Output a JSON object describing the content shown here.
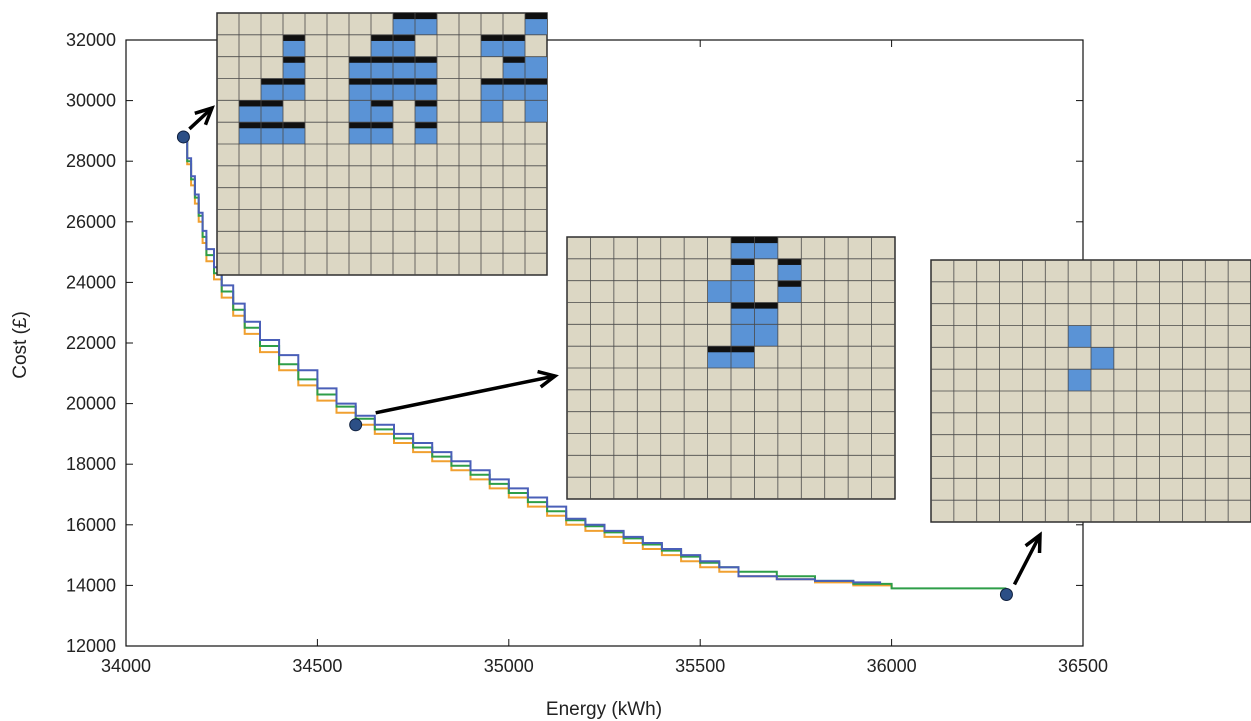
{
  "chart_data": {
    "type": "line",
    "xlabel": "Energy (kWh)",
    "ylabel": "Cost (£)",
    "xlim": [
      34000,
      36500
    ],
    "ylim": [
      12000,
      32000
    ],
    "x_ticks": [
      "34000",
      "34500",
      "35000",
      "35500",
      "36000",
      "36500"
    ],
    "y_ticks": [
      "12000",
      "14000",
      "16000",
      "18000",
      "20000",
      "22000",
      "24000",
      "26000",
      "28000",
      "30000",
      "32000"
    ],
    "grid": false,
    "series": [
      {
        "color": "#F0A030",
        "x": [
          34150,
          34160,
          34170,
          34180,
          34190,
          34200,
          34210,
          34230,
          34250,
          34280,
          34310,
          34350,
          34400,
          34450,
          34500,
          34550,
          34600,
          34650,
          34700,
          34750,
          34800,
          34850,
          34900,
          34950,
          35000,
          35050,
          35100,
          35150,
          35200,
          35250,
          35300,
          35350,
          35400,
          35450,
          35500,
          35550,
          35600,
          35700,
          35800,
          35900,
          36000
        ],
        "y": [
          28800,
          27900,
          27200,
          26600,
          26000,
          25300,
          24700,
          24100,
          23500,
          22900,
          22300,
          21700,
          21100,
          20600,
          20100,
          19700,
          19300,
          19000,
          18700,
          18400,
          18100,
          17800,
          17500,
          17200,
          16900,
          16600,
          16300,
          16000,
          15800,
          15600,
          15400,
          15200,
          15000,
          14800,
          14600,
          14450,
          14300,
          14200,
          14100,
          14000,
          13900
        ]
      },
      {
        "color": "#2E9E48",
        "x": [
          34150,
          34160,
          34170,
          34180,
          34190,
          34200,
          34210,
          34230,
          34250,
          34280,
          34310,
          34350,
          34400,
          34450,
          34500,
          34550,
          34600,
          34650,
          34700,
          34750,
          34800,
          34850,
          34900,
          34950,
          35000,
          35050,
          35100,
          35150,
          35200,
          35250,
          35300,
          35350,
          35400,
          35450,
          35500,
          35550,
          35600,
          35700,
          35800,
          35900,
          36000,
          36100,
          36200,
          36300
        ],
        "y": [
          28800,
          28000,
          27400,
          26800,
          26200,
          25500,
          24900,
          24300,
          23700,
          23100,
          22500,
          21900,
          21300,
          20800,
          20300,
          19900,
          19500,
          19150,
          18850,
          18550,
          18250,
          17950,
          17650,
          17350,
          17050,
          16750,
          16450,
          16150,
          15950,
          15750,
          15550,
          15350,
          15150,
          14950,
          14750,
          14600,
          14450,
          14300,
          14150,
          14050,
          13900,
          13900,
          13900,
          13900
        ]
      },
      {
        "color": "#4A5FB8",
        "x": [
          34150,
          34160,
          34170,
          34180,
          34190,
          34200,
          34210,
          34230,
          34250,
          34280,
          34310,
          34350,
          34400,
          34450,
          34500,
          34550,
          34600,
          34650,
          34700,
          34750,
          34800,
          34850,
          34900,
          34950,
          35000,
          35050,
          35100,
          35150,
          35200,
          35250,
          35300,
          35350,
          35400,
          35450,
          35500,
          35550,
          35600,
          35700,
          35800,
          35900,
          35970
        ],
        "y": [
          28800,
          28100,
          27500,
          26900,
          26300,
          25700,
          25100,
          24500,
          23900,
          23300,
          22700,
          22100,
          21600,
          21100,
          20500,
          20000,
          19600,
          19300,
          19000,
          18700,
          18400,
          18100,
          17800,
          17500,
          17200,
          16900,
          16600,
          16200,
          16000,
          15800,
          15600,
          15400,
          15200,
          15000,
          14800,
          14600,
          14300,
          14200,
          14150,
          14100,
          14050
        ]
      }
    ],
    "highlighted_points": [
      {
        "x": 34150,
        "y": 28800
      },
      {
        "x": 34600,
        "y": 19300
      },
      {
        "x": 36300,
        "y": 13700
      }
    ],
    "insets": [
      {
        "rows": 12,
        "cols": 15,
        "blue_cells": [
          [
            0,
            8
          ],
          [
            0,
            9
          ],
          [
            0,
            14
          ],
          [
            1,
            3
          ],
          [
            1,
            7
          ],
          [
            1,
            8
          ],
          [
            1,
            12
          ],
          [
            1,
            13
          ],
          [
            2,
            3
          ],
          [
            2,
            6
          ],
          [
            2,
            7
          ],
          [
            2,
            8
          ],
          [
            2,
            9
          ],
          [
            2,
            13
          ],
          [
            2,
            14
          ],
          [
            3,
            2
          ],
          [
            3,
            3
          ],
          [
            3,
            6
          ],
          [
            3,
            7
          ],
          [
            3,
            8
          ],
          [
            3,
            9
          ],
          [
            3,
            12
          ],
          [
            3,
            13
          ],
          [
            3,
            14
          ],
          [
            4,
            1
          ],
          [
            4,
            2
          ],
          [
            4,
            6
          ],
          [
            4,
            7
          ],
          [
            4,
            9
          ],
          [
            4,
            12
          ],
          [
            4,
            14
          ],
          [
            5,
            1
          ],
          [
            5,
            2
          ],
          [
            5,
            3
          ],
          [
            5,
            6
          ],
          [
            5,
            7
          ],
          [
            5,
            9
          ]
        ],
        "black_bar_cells": [
          [
            0,
            8
          ],
          [
            0,
            9
          ],
          [
            0,
            14
          ],
          [
            1,
            3
          ],
          [
            1,
            7
          ],
          [
            1,
            8
          ],
          [
            1,
            12
          ],
          [
            1,
            13
          ],
          [
            2,
            3
          ],
          [
            2,
            6
          ],
          [
            2,
            7
          ],
          [
            2,
            8
          ],
          [
            2,
            9
          ],
          [
            2,
            13
          ],
          [
            3,
            2
          ],
          [
            3,
            3
          ],
          [
            3,
            6
          ],
          [
            3,
            7
          ],
          [
            3,
            8
          ],
          [
            3,
            9
          ],
          [
            3,
            12
          ],
          [
            3,
            13
          ],
          [
            3,
            14
          ],
          [
            4,
            1
          ],
          [
            4,
            2
          ],
          [
            4,
            7
          ],
          [
            4,
            9
          ],
          [
            5,
            1
          ],
          [
            5,
            2
          ],
          [
            5,
            3
          ],
          [
            5,
            6
          ],
          [
            5,
            7
          ],
          [
            5,
            9
          ]
        ]
      },
      {
        "rows": 12,
        "cols": 14,
        "blue_cells": [
          [
            0,
            7
          ],
          [
            0,
            8
          ],
          [
            1,
            7
          ],
          [
            1,
            9
          ],
          [
            2,
            6
          ],
          [
            2,
            7
          ],
          [
            2,
            9
          ],
          [
            3,
            7
          ],
          [
            3,
            8
          ],
          [
            4,
            7
          ],
          [
            4,
            8
          ],
          [
            5,
            6
          ],
          [
            5,
            7
          ]
        ],
        "black_bar_cells": [
          [
            0,
            7
          ],
          [
            0,
            8
          ],
          [
            1,
            7
          ],
          [
            1,
            9
          ],
          [
            2,
            9
          ],
          [
            3,
            7
          ],
          [
            3,
            8
          ],
          [
            5,
            6
          ],
          [
            5,
            7
          ]
        ]
      },
      {
        "rows": 12,
        "cols": 14,
        "blue_cells": [
          [
            3,
            6
          ],
          [
            4,
            7
          ],
          [
            5,
            6
          ]
        ],
        "black_bar_cells": []
      }
    ]
  }
}
